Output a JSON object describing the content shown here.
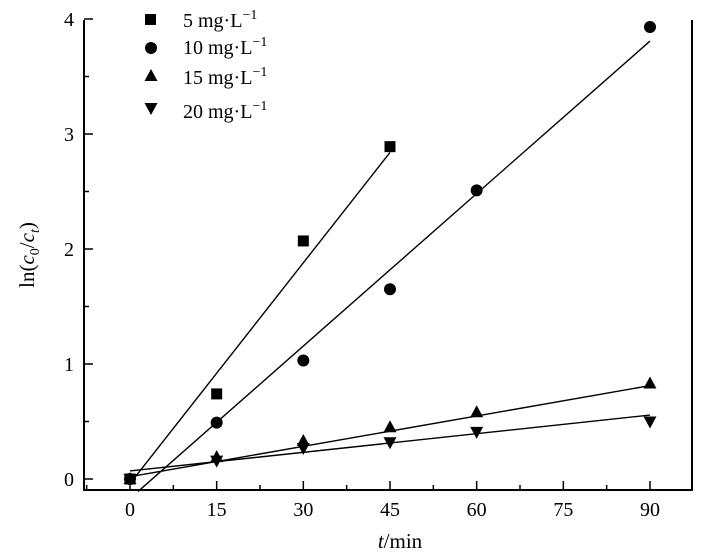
{
  "chart_data": {
    "type": "scatter",
    "title": "",
    "xlabel_italic": "t",
    "xlabel_unit": "/min",
    "ylabel_prefix": "ln(",
    "ylabel_c0": "c",
    "ylabel_c0_sub": "0",
    "ylabel_slash": "/",
    "ylabel_ct": "c",
    "ylabel_ct_sub": "t",
    "ylabel_suffix": ")",
    "xlim": [
      -8,
      98
    ],
    "ylim": [
      -0.1,
      4.05
    ],
    "xticks": [
      0,
      15,
      30,
      45,
      60,
      75,
      90
    ],
    "xtick_labels": [
      "0",
      "15",
      "30",
      "45",
      "60",
      "75",
      "90"
    ],
    "yticks": [
      0,
      1,
      2,
      3,
      4
    ],
    "ytick_labels": [
      "0",
      "1",
      "2",
      "3",
      "4"
    ],
    "legend_position": "top-left",
    "series": [
      {
        "name": "5 mg·L",
        "name_sup": "−1",
        "marker": "square",
        "x": [
          0,
          15,
          30,
          45
        ],
        "y": [
          0,
          0.74,
          2.07,
          2.89
        ],
        "fit": {
          "x0": 0,
          "x1": 45,
          "slope": 0.064,
          "intercept": -0.04
        }
      },
      {
        "name": "10 mg·L",
        "name_sup": "−1",
        "marker": "circle",
        "x": [
          0,
          15,
          30,
          45,
          60,
          90
        ],
        "y": [
          0,
          0.49,
          1.03,
          1.65,
          2.51,
          3.93
        ],
        "fit": {
          "x0": 1.4,
          "x1": 90,
          "slope": 0.0442,
          "intercept": -0.17
        }
      },
      {
        "name": "15 mg·L",
        "name_sup": "−1",
        "marker": "triangle-up",
        "x": [
          0,
          15,
          30,
          45,
          60,
          90
        ],
        "y": [
          0,
          0.19,
          0.33,
          0.45,
          0.58,
          0.83
        ],
        "fit": {
          "x0": 0,
          "x1": 90,
          "slope": 0.0088,
          "intercept": 0.02
        }
      },
      {
        "name": "20 mg·L",
        "name_sup": "−1",
        "marker": "triangle-down",
        "x": [
          0,
          15,
          30,
          45,
          60,
          90
        ],
        "y": [
          0,
          0.16,
          0.27,
          0.32,
          0.41,
          0.5
        ],
        "fit": {
          "x0": 0,
          "x1": 90,
          "slope": 0.0054,
          "intercept": 0.07
        }
      }
    ]
  }
}
